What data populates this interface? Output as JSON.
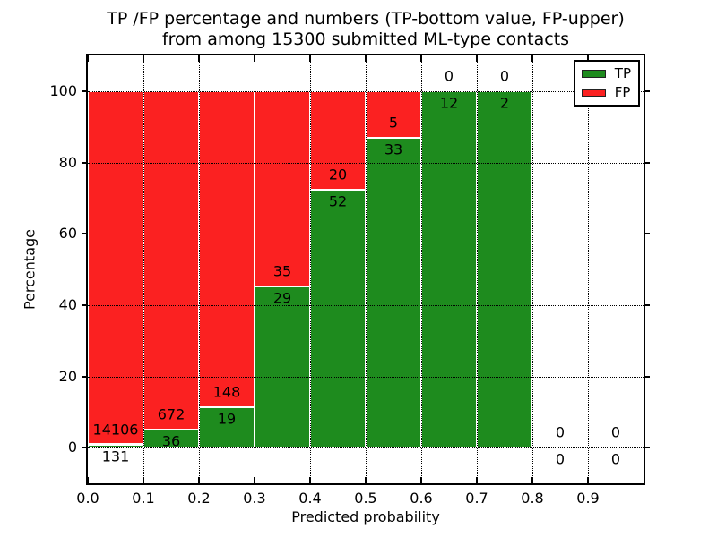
{
  "chart_data": {
    "type": "bar",
    "stacked": true,
    "title_line1": "TP /FP percentage and numbers (TP-bottom value, FP-upper)",
    "title_line2": "from among 15300 submitted ML-type contacts",
    "xlabel": "Predicted probability",
    "ylabel": "Percentage",
    "x_ticks": [
      "0.0",
      "0.1",
      "0.2",
      "0.3",
      "0.4",
      "0.5",
      "0.6",
      "0.7",
      "0.8",
      "0.9"
    ],
    "y_ticks": [
      "0",
      "20",
      "40",
      "60",
      "80",
      "100"
    ],
    "xlim": [
      0,
      1
    ],
    "ylim": [
      -10,
      110
    ],
    "bar_width": 0.1,
    "grid": "dotted",
    "background": "#ffffff",
    "legend": {
      "position": "upper right",
      "entries": [
        {
          "label": "TP",
          "color": "#1e8b1e"
        },
        {
          "label": "FP",
          "color": "#fb2121"
        }
      ]
    },
    "bins": [
      {
        "start": 0.0,
        "end": 0.1,
        "tp": 131,
        "fp": 14106,
        "tp_pct": 0.92
      },
      {
        "start": 0.1,
        "end": 0.2,
        "tp": 36,
        "fp": 672,
        "tp_pct": 5.08
      },
      {
        "start": 0.2,
        "end": 0.3,
        "tp": 19,
        "fp": 148,
        "tp_pct": 11.38
      },
      {
        "start": 0.3,
        "end": 0.4,
        "tp": 29,
        "fp": 35,
        "tp_pct": 45.31
      },
      {
        "start": 0.4,
        "end": 0.5,
        "tp": 52,
        "fp": 20,
        "tp_pct": 72.22
      },
      {
        "start": 0.5,
        "end": 0.6,
        "tp": 33,
        "fp": 5,
        "tp_pct": 86.84
      },
      {
        "start": 0.6,
        "end": 0.7,
        "tp": 12,
        "fp": 0,
        "tp_pct": 100
      },
      {
        "start": 0.7,
        "end": 0.8,
        "tp": 2,
        "fp": 0,
        "tp_pct": 100
      },
      {
        "start": 0.8,
        "end": 0.9,
        "tp": 0,
        "fp": 0,
        "tp_pct": null
      },
      {
        "start": 0.9,
        "end": 1.0,
        "tp": 0,
        "fp": 0,
        "tp_pct": null
      }
    ]
  }
}
